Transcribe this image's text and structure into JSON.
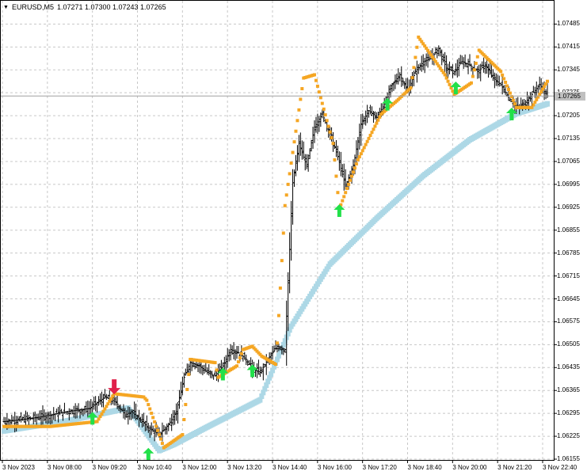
{
  "header": {
    "symbol": "EURUSD,M5",
    "ohlc": "1.07271 1.07300 1.07243 1.07265",
    "collapse_icon": "triangle-down-icon"
  },
  "current_price_label": "1.07265",
  "colors": {
    "grid": "#c8c8c8",
    "candles": "#000000",
    "trailing_stop": "#f5a623",
    "baseline": "#add8e6",
    "buy_arrow": "#22e04a",
    "sell_arrow": "#e0204a"
  },
  "chart_data": {
    "type": "candlestick",
    "y_ticks": [
      "1.07485",
      "1.07415",
      "1.07345",
      "1.07275",
      "1.07205",
      "1.07135",
      "1.07065",
      "1.06995",
      "1.06925",
      "1.06855",
      "1.06785",
      "1.06715",
      "1.06645",
      "1.06575",
      "1.06505",
      "1.06435",
      "1.06365",
      "1.06295",
      "1.06225",
      "1.06155"
    ],
    "x_ticks": [
      "3 Nov 2023",
      "3 Nov 08:00",
      "3 Nov 09:20",
      "3 Nov 10:40",
      "3 Nov 12:00",
      "3 Nov 13:20",
      "3 Nov 14:40",
      "3 Nov 16:00",
      "3 Nov 17:20",
      "3 Nov 18:40",
      "3 Nov 20:00",
      "3 Nov 21:20",
      "3 Nov 22:40"
    ],
    "ylim": [
      1.06155,
      1.07515
    ],
    "close_path": [
      [
        0,
        1.0627
      ],
      [
        10,
        1.06275
      ],
      [
        25,
        1.06285
      ],
      [
        40,
        1.063
      ],
      [
        55,
        1.0631
      ],
      [
        65,
        1.06345
      ],
      [
        72,
        1.0633
      ],
      [
        78,
        1.0629
      ],
      [
        82,
        1.063
      ],
      [
        87,
        1.0628
      ],
      [
        93,
        1.0625
      ],
      [
        100,
        1.0623
      ],
      [
        106,
        1.0626
      ],
      [
        111,
        1.063
      ],
      [
        116,
        1.06405
      ],
      [
        120,
        1.0645
      ],
      [
        126,
        1.0644
      ],
      [
        131,
        1.0642
      ],
      [
        136,
        1.0641
      ],
      [
        141,
        1.0644
      ],
      [
        146,
        1.0649
      ],
      [
        151,
        1.0648
      ],
      [
        156,
        1.0646
      ],
      [
        160,
        1.0643
      ],
      [
        165,
        1.0642
      ],
      [
        170,
        1.0646
      ],
      [
        176,
        1.065
      ],
      [
        181,
        1.0649
      ],
      [
        186,
        1.07
      ],
      [
        190,
        1.0712
      ],
      [
        195,
        1.0705
      ],
      [
        200,
        1.0717
      ],
      [
        205,
        1.0721
      ],
      [
        210,
        1.0715
      ],
      [
        215,
        1.0708
      ],
      [
        220,
        1.0699
      ],
      [
        225,
        1.0705
      ],
      [
        230,
        1.0718
      ],
      [
        235,
        1.0722
      ],
      [
        240,
        1.072
      ],
      [
        245,
        1.0724
      ],
      [
        250,
        1.073
      ],
      [
        255,
        1.0733
      ],
      [
        260,
        1.0728
      ],
      [
        265,
        1.0734
      ],
      [
        270,
        1.0737
      ],
      [
        275,
        1.0738
      ],
      [
        280,
        1.0741
      ],
      [
        285,
        1.0735
      ],
      [
        290,
        1.0734
      ],
      [
        295,
        1.0737
      ],
      [
        300,
        1.0736
      ],
      [
        305,
        1.0734
      ],
      [
        310,
        1.0736
      ],
      [
        315,
        1.0732
      ],
      [
        320,
        1.073
      ],
      [
        325,
        1.0726
      ],
      [
        330,
        1.0723
      ],
      [
        335,
        1.0724
      ],
      [
        340,
        1.0727
      ],
      [
        345,
        1.073
      ],
      [
        350,
        1.07265
      ]
    ],
    "trailing_stop": [
      [
        0,
        1.06255
      ],
      [
        30,
        1.06255
      ],
      [
        60,
        1.0627
      ],
      [
        71,
        1.06355
      ],
      [
        90,
        1.06345
      ],
      [
        92,
        1.06335
      ],
      [
        103,
        1.0619
      ],
      [
        115,
        1.0623
      ],
      [
        120,
        1.0646
      ],
      [
        136,
        1.0645
      ],
      [
        138,
        1.06405
      ],
      [
        150,
        1.0644
      ],
      [
        154,
        1.0649
      ],
      [
        160,
        1.065
      ],
      [
        166,
        1.0647
      ],
      [
        175,
        1.06445
      ],
      [
        176,
        1.0651
      ],
      [
        181,
        1.0693
      ],
      [
        193,
        1.0732
      ],
      [
        200,
        1.0733
      ],
      [
        212,
        1.0712
      ],
      [
        216,
        1.0692
      ],
      [
        228,
        1.0707
      ],
      [
        243,
        1.0721
      ],
      [
        253,
        1.0725
      ],
      [
        262,
        1.0729
      ],
      [
        267,
        1.07445
      ],
      [
        284,
        1.0733
      ],
      [
        290,
        1.0727
      ],
      [
        301,
        1.07305
      ],
      [
        306,
        1.07405
      ],
      [
        320,
        1.0734
      ],
      [
        330,
        1.0723
      ],
      [
        340,
        1.0723
      ],
      [
        345,
        1.0727
      ],
      [
        350,
        1.0731
      ]
    ],
    "baseline": [
      [
        0,
        1.0624
      ],
      [
        40,
        1.0627
      ],
      [
        80,
        1.0631
      ],
      [
        100,
        1.0618
      ],
      [
        110,
        1.062
      ],
      [
        130,
        1.0625
      ],
      [
        165,
        1.06335
      ],
      [
        185,
        1.0656
      ],
      [
        210,
        1.0675
      ],
      [
        240,
        1.0689
      ],
      [
        270,
        1.0702
      ],
      [
        300,
        1.0713
      ],
      [
        330,
        1.0721
      ],
      [
        350,
        1.0724
      ]
    ],
    "buy_signals": [
      [
        57,
        1.0628
      ],
      [
        93,
        1.0617
      ],
      [
        141,
        1.06415
      ],
      [
        160,
        1.06425
      ],
      [
        216,
        1.06915
      ],
      [
        247,
        1.0724
      ],
      [
        291,
        1.0729
      ],
      [
        327,
        1.0721
      ]
    ],
    "sell_signals": [
      [
        71,
        1.06375
      ]
    ],
    "current_price": 1.07265
  }
}
